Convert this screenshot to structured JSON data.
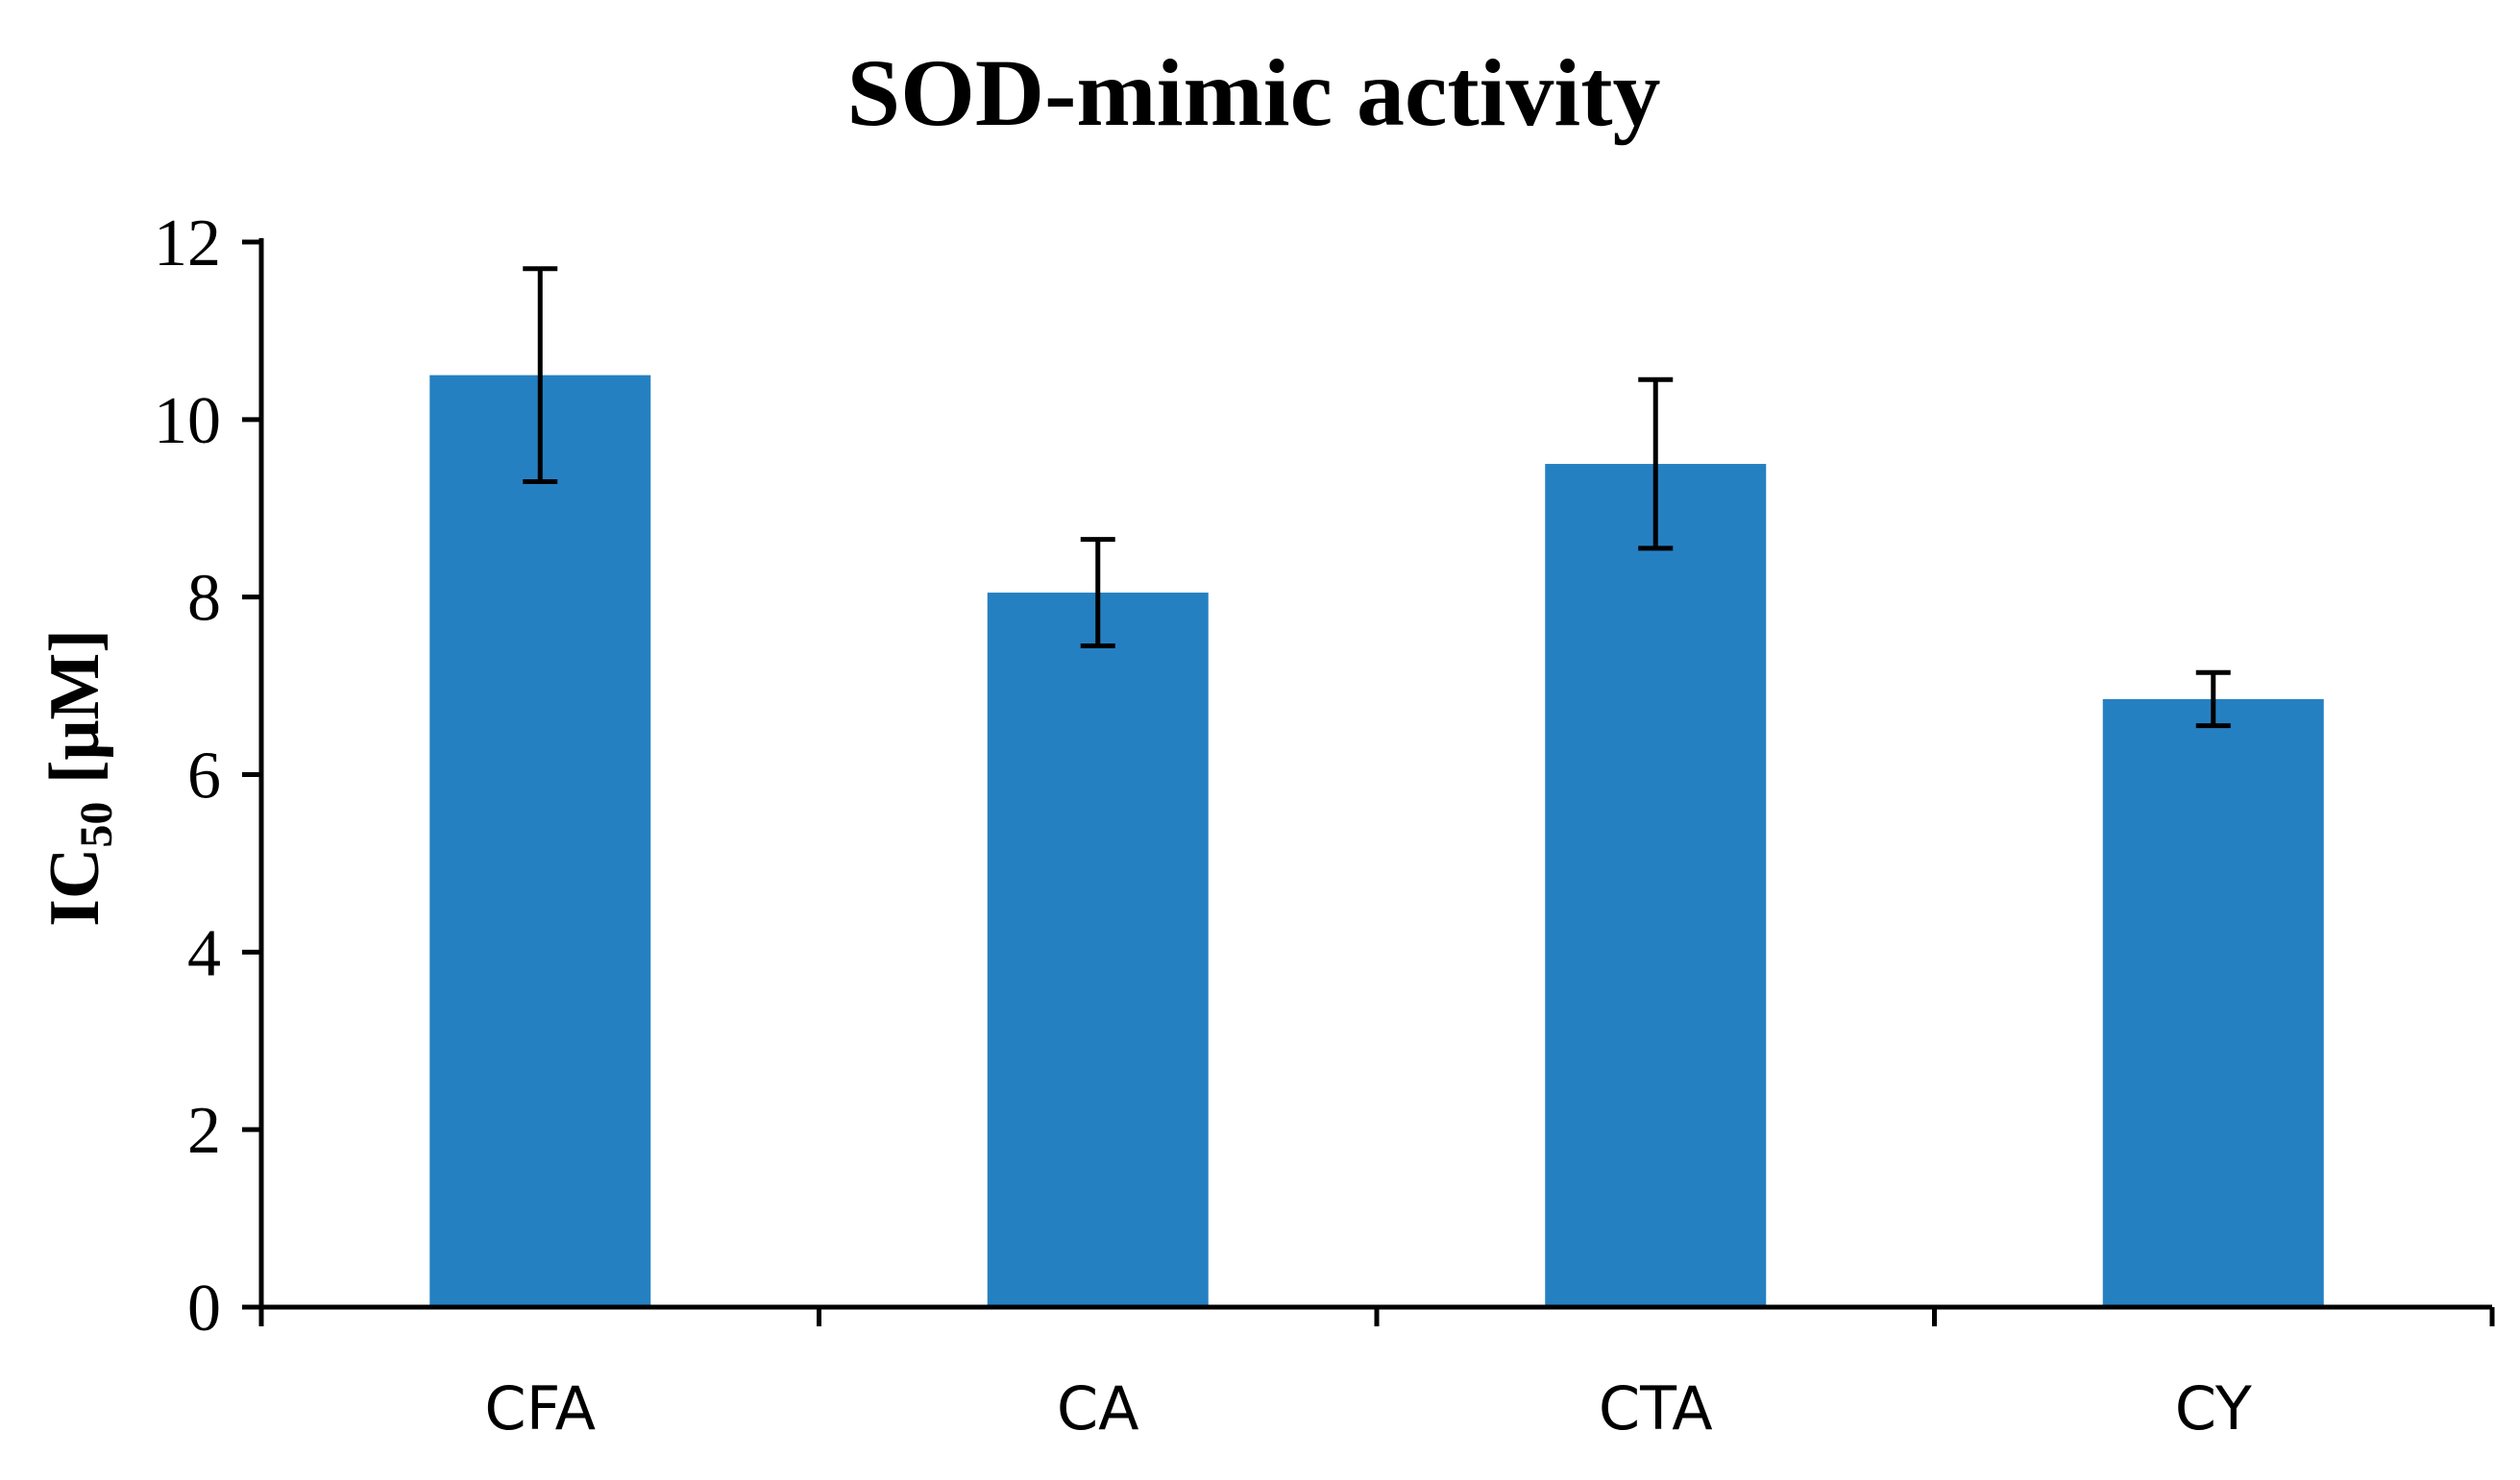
{
  "chart_data": {
    "type": "bar",
    "title": "SOD-mimic activity",
    "xlabel": "",
    "ylabel": {
      "main": "IC",
      "subscript": "50",
      "unit": " [μM]"
    },
    "categories": [
      "CFA",
      "CA",
      "CTA",
      "CY"
    ],
    "values": [
      10.5,
      8.05,
      9.5,
      6.85
    ],
    "errors": [
      1.2,
      0.6,
      0.95,
      0.3
    ],
    "ylim": [
      0,
      12
    ],
    "yticks": [
      0,
      2,
      4,
      6,
      8,
      10,
      12
    ],
    "grid": false,
    "legend": "none",
    "bar_color": "#2580C2",
    "error_color": "#000000",
    "axis_color": "#000000"
  }
}
